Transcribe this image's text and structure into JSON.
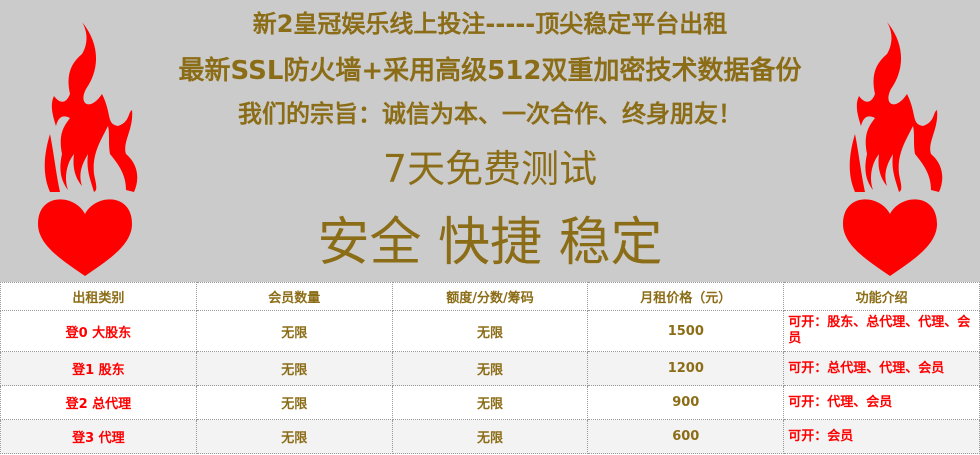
{
  "banner": {
    "lines": [
      "新2皇冠娱乐线上投注-----顶尖稳定平台出租",
      "最新SSL防火墙+采用高级512双重加密技术数据备份",
      "我们的宗旨：诚信为本、一次合作、终身朋友！",
      "7天免费测试",
      "安全 快捷 稳定"
    ],
    "text_color": "#8c6d17",
    "background": "#cbcbcb",
    "icon": "flaming-heart-icon",
    "icon_color": "#ff0000"
  },
  "table": {
    "headers": [
      "出租类别",
      "会员数量",
      "额度/分数/筹码",
      "月租价格（元）",
      "功能介绍"
    ],
    "rows": [
      [
        "登0 大股东",
        "无限",
        "无限",
        "1500",
        "可开：股东、总代理、代理、会员"
      ],
      [
        "登1 股东",
        "无限",
        "无限",
        "1200",
        "可开：总代理、代理、会员"
      ],
      [
        "登2 总代理",
        "无限",
        "无限",
        "900",
        "可开：代理、会员"
      ],
      [
        "登3 代理",
        "无限",
        "无限",
        "600",
        "可开：会员"
      ]
    ]
  }
}
